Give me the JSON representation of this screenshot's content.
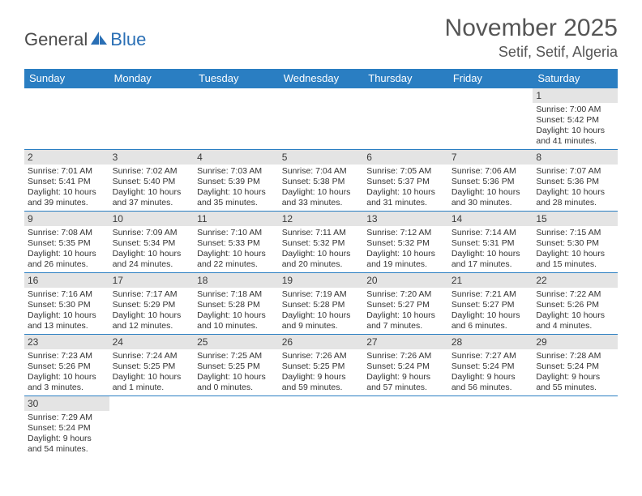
{
  "logo": {
    "part1": "General",
    "part2": "Blue"
  },
  "title": "November 2025",
  "location": "Setif, Setif, Algeria",
  "colors": {
    "header_bg": "#2a7ec2",
    "header_fg": "#ffffff",
    "daynum_bg": "#e4e4e4",
    "border": "#2a7ec2",
    "title_color": "#555555",
    "logo_accent": "#2a6fb5",
    "logo_gray": "#4a4a4a"
  },
  "daynames": [
    "Sunday",
    "Monday",
    "Tuesday",
    "Wednesday",
    "Thursday",
    "Friday",
    "Saturday"
  ],
  "weeks": [
    [
      {
        "blank": true
      },
      {
        "blank": true
      },
      {
        "blank": true
      },
      {
        "blank": true
      },
      {
        "blank": true
      },
      {
        "blank": true
      },
      {
        "n": "1",
        "sr": "7:00 AM",
        "ss": "5:42 PM",
        "dl": "10 hours and 41 minutes."
      }
    ],
    [
      {
        "n": "2",
        "sr": "7:01 AM",
        "ss": "5:41 PM",
        "dl": "10 hours and 39 minutes."
      },
      {
        "n": "3",
        "sr": "7:02 AM",
        "ss": "5:40 PM",
        "dl": "10 hours and 37 minutes."
      },
      {
        "n": "4",
        "sr": "7:03 AM",
        "ss": "5:39 PM",
        "dl": "10 hours and 35 minutes."
      },
      {
        "n": "5",
        "sr": "7:04 AM",
        "ss": "5:38 PM",
        "dl": "10 hours and 33 minutes."
      },
      {
        "n": "6",
        "sr": "7:05 AM",
        "ss": "5:37 PM",
        "dl": "10 hours and 31 minutes."
      },
      {
        "n": "7",
        "sr": "7:06 AM",
        "ss": "5:36 PM",
        "dl": "10 hours and 30 minutes."
      },
      {
        "n": "8",
        "sr": "7:07 AM",
        "ss": "5:36 PM",
        "dl": "10 hours and 28 minutes."
      }
    ],
    [
      {
        "n": "9",
        "sr": "7:08 AM",
        "ss": "5:35 PM",
        "dl": "10 hours and 26 minutes."
      },
      {
        "n": "10",
        "sr": "7:09 AM",
        "ss": "5:34 PM",
        "dl": "10 hours and 24 minutes."
      },
      {
        "n": "11",
        "sr": "7:10 AM",
        "ss": "5:33 PM",
        "dl": "10 hours and 22 minutes."
      },
      {
        "n": "12",
        "sr": "7:11 AM",
        "ss": "5:32 PM",
        "dl": "10 hours and 20 minutes."
      },
      {
        "n": "13",
        "sr": "7:12 AM",
        "ss": "5:32 PM",
        "dl": "10 hours and 19 minutes."
      },
      {
        "n": "14",
        "sr": "7:14 AM",
        "ss": "5:31 PM",
        "dl": "10 hours and 17 minutes."
      },
      {
        "n": "15",
        "sr": "7:15 AM",
        "ss": "5:30 PM",
        "dl": "10 hours and 15 minutes."
      }
    ],
    [
      {
        "n": "16",
        "sr": "7:16 AM",
        "ss": "5:30 PM",
        "dl": "10 hours and 13 minutes."
      },
      {
        "n": "17",
        "sr": "7:17 AM",
        "ss": "5:29 PM",
        "dl": "10 hours and 12 minutes."
      },
      {
        "n": "18",
        "sr": "7:18 AM",
        "ss": "5:28 PM",
        "dl": "10 hours and 10 minutes."
      },
      {
        "n": "19",
        "sr": "7:19 AM",
        "ss": "5:28 PM",
        "dl": "10 hours and 9 minutes."
      },
      {
        "n": "20",
        "sr": "7:20 AM",
        "ss": "5:27 PM",
        "dl": "10 hours and 7 minutes."
      },
      {
        "n": "21",
        "sr": "7:21 AM",
        "ss": "5:27 PM",
        "dl": "10 hours and 6 minutes."
      },
      {
        "n": "22",
        "sr": "7:22 AM",
        "ss": "5:26 PM",
        "dl": "10 hours and 4 minutes."
      }
    ],
    [
      {
        "n": "23",
        "sr": "7:23 AM",
        "ss": "5:26 PM",
        "dl": "10 hours and 3 minutes."
      },
      {
        "n": "24",
        "sr": "7:24 AM",
        "ss": "5:25 PM",
        "dl": "10 hours and 1 minute."
      },
      {
        "n": "25",
        "sr": "7:25 AM",
        "ss": "5:25 PM",
        "dl": "10 hours and 0 minutes."
      },
      {
        "n": "26",
        "sr": "7:26 AM",
        "ss": "5:25 PM",
        "dl": "9 hours and 59 minutes."
      },
      {
        "n": "27",
        "sr": "7:26 AM",
        "ss": "5:24 PM",
        "dl": "9 hours and 57 minutes."
      },
      {
        "n": "28",
        "sr": "7:27 AM",
        "ss": "5:24 PM",
        "dl": "9 hours and 56 minutes."
      },
      {
        "n": "29",
        "sr": "7:28 AM",
        "ss": "5:24 PM",
        "dl": "9 hours and 55 minutes."
      }
    ],
    [
      {
        "n": "30",
        "sr": "7:29 AM",
        "ss": "5:24 PM",
        "dl": "9 hours and 54 minutes."
      },
      {
        "blank": true
      },
      {
        "blank": true
      },
      {
        "blank": true
      },
      {
        "blank": true
      },
      {
        "blank": true
      },
      {
        "blank": true
      }
    ]
  ],
  "labels": {
    "sunrise": "Sunrise:",
    "sunset": "Sunset:",
    "daylight": "Daylight:"
  }
}
